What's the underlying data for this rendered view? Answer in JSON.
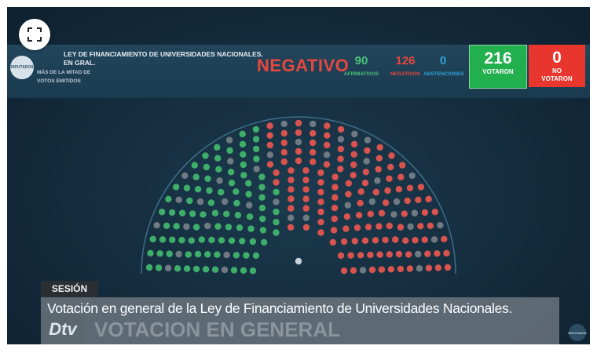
{
  "vote_header": {
    "logo_text": "DIPUTADOS",
    "law_title": "LEY DE FINANCIAMIENTO DE UNIVERSIDADES NACIONALES.",
    "stage": "EN GRAL.",
    "majority_rule": "MÁS DE LA MITAD DE VOTOS EMITIDOS",
    "result": "NEGATIVO",
    "affirmative": {
      "count": "90",
      "label": "AFIRMATIVOS"
    },
    "negative": {
      "count": "126",
      "label": "NEGATIVOS"
    },
    "abstention": {
      "count": "0",
      "label": "ABSTENCIONES"
    },
    "voted": {
      "count": "216",
      "label": "VOTARON"
    },
    "not_voted": {
      "count": "0",
      "label_line1": "NO",
      "label_line2": "VOTARON"
    }
  },
  "chamber_seats": {
    "total": 257,
    "affirmative": 90,
    "negative": 126,
    "absent": 41,
    "colors": {
      "affirmative": "#3fae6a",
      "negative": "#d9534f",
      "absent": "#6f7a82",
      "president": "#c9d2d8"
    }
  },
  "lower_third": {
    "section_label": "SESIÓN",
    "caption": "Votación en general de la Ley de Financiamiento de Universidades Nacionales.",
    "ghost_caption": "VOTACION EN GENERAL",
    "channel_logo": "Dtv",
    "corner_logo": "DIPUTADOS"
  },
  "controls": {
    "expand_icon": "expand-fullscreen-icon"
  }
}
